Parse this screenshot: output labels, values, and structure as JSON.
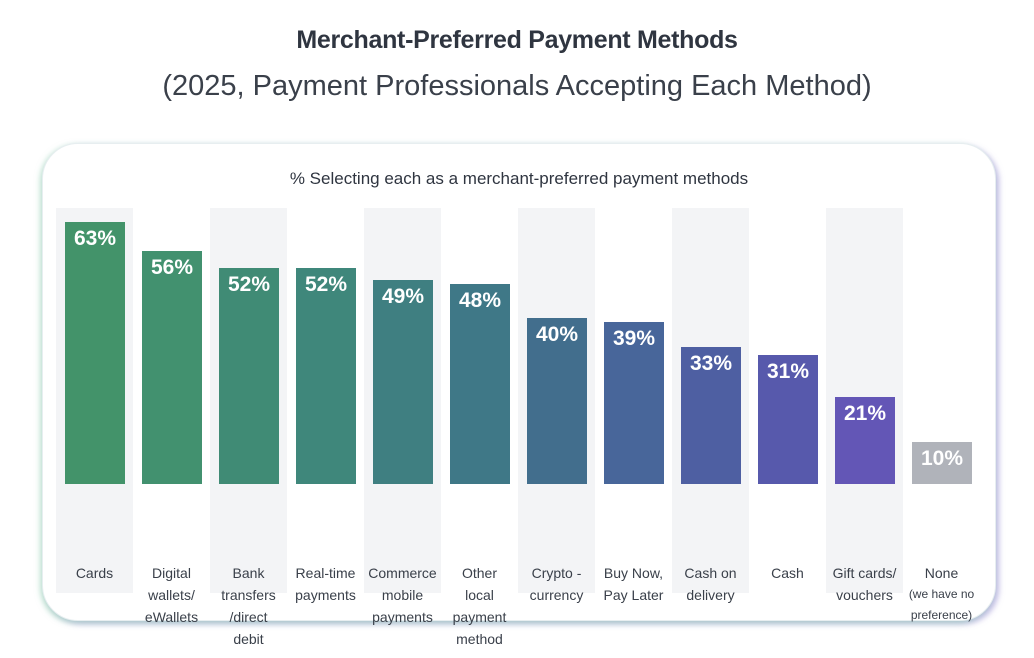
{
  "header": {
    "title": "Merchant-Preferred Payment Methods",
    "subtitle": "(2025, Payment Professionals Accepting Each Method)"
  },
  "card": {
    "title": "% Selecting each as a merchant-preferred payment methods"
  },
  "bars": [
    {
      "label": "Cards",
      "value": 63,
      "display": "63%",
      "color": "#43936a"
    },
    {
      "label": "Digital\nwallets/\neWallets",
      "value": 56,
      "display": "56%",
      "color": "#42916f"
    },
    {
      "label": "Bank\ntransfers\n/direct\ndebit",
      "value": 52,
      "display": "52%",
      "color": "#408b75"
    },
    {
      "label": "Real-time\npayments",
      "value": 52,
      "display": "52%",
      "color": "#3f877b"
    },
    {
      "label": "Commerce\nmobile\npayments",
      "value": 49,
      "display": "49%",
      "color": "#3f7f81"
    },
    {
      "label": "Other\nlocal\npayment\nmethod",
      "value": 48,
      "display": "48%",
      "color": "#3f7887"
    },
    {
      "label": "Crypto -\ncurrency",
      "value": 40,
      "display": "40%",
      "color": "#426e8d"
    },
    {
      "label": "Buy Now,\nPay Later",
      "value": 39,
      "display": "39%",
      "color": "#48669a"
    },
    {
      "label": "Cash on\ndelivery",
      "value": 33,
      "display": "33%",
      "color": "#4e5fa2"
    },
    {
      "label": "Cash",
      "value": 31,
      "display": "31%",
      "color": "#5759ac"
    },
    {
      "label": "Gift cards/\nvouchers",
      "value": 21,
      "display": "21%",
      "color": "#6356b6"
    },
    {
      "label": "None\n(we have no\npreference)",
      "value": 10,
      "display": "10%",
      "color": "#b0b3ba"
    }
  ],
  "chart_data": {
    "type": "bar",
    "title": "Merchant-Preferred Payment Methods",
    "subtitle": "(2025, Payment Professionals Accepting Each Method)",
    "panel_title": "% Selecting each as a merchant-preferred payment methods",
    "categories": [
      "Cards",
      "Digital wallets/eWallets",
      "Bank transfers/direct debit",
      "Real-time payments",
      "Commerce mobile payments",
      "Other local payment method",
      "Crypto-currency",
      "Buy Now, Pay Later",
      "Cash on delivery",
      "Cash",
      "Gift cards/vouchers",
      "None (we have no preference)"
    ],
    "values": [
      63,
      56,
      52,
      52,
      49,
      48,
      40,
      39,
      33,
      31,
      21,
      10
    ],
    "unit": "%",
    "xlabel": "",
    "ylabel": "",
    "ylim": [
      0,
      70
    ],
    "grid": false,
    "legend": "none",
    "data_labels": true
  }
}
